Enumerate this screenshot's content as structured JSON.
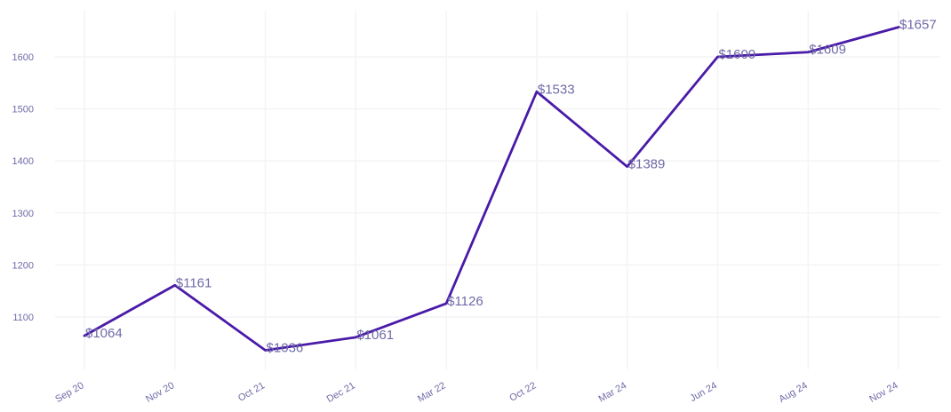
{
  "chart_data": {
    "type": "line",
    "title": "",
    "xlabel": "",
    "ylabel": "",
    "categories": [
      "Sep 20",
      "Nov 20",
      "Oct 21",
      "Dec 21",
      "Mar 22",
      "Oct 22",
      "Mar 24",
      "Jun 24",
      "Aug 24",
      "Nov 24"
    ],
    "series": [
      {
        "values": [
          1064,
          1161,
          1036,
          1061,
          1126,
          1533,
          1389,
          1600,
          1609,
          1657
        ],
        "color": "#4a1aa8"
      }
    ],
    "data_labels": [
      "$1064",
      "$1161",
      "$1036",
      "$1061",
      "$1126",
      "$1533",
      "$1389",
      "$1600",
      "$1609",
      "$1657"
    ],
    "y_ticks": [
      "1100",
      "1200",
      "1300",
      "1400",
      "1500",
      "1600"
    ],
    "ylim": [
      1000,
      1700
    ],
    "grid": true,
    "legend": "none",
    "colors": {
      "line": "#4a1aa8",
      "labels": "#6f6aa8",
      "grid": "#f4f4f6"
    }
  }
}
